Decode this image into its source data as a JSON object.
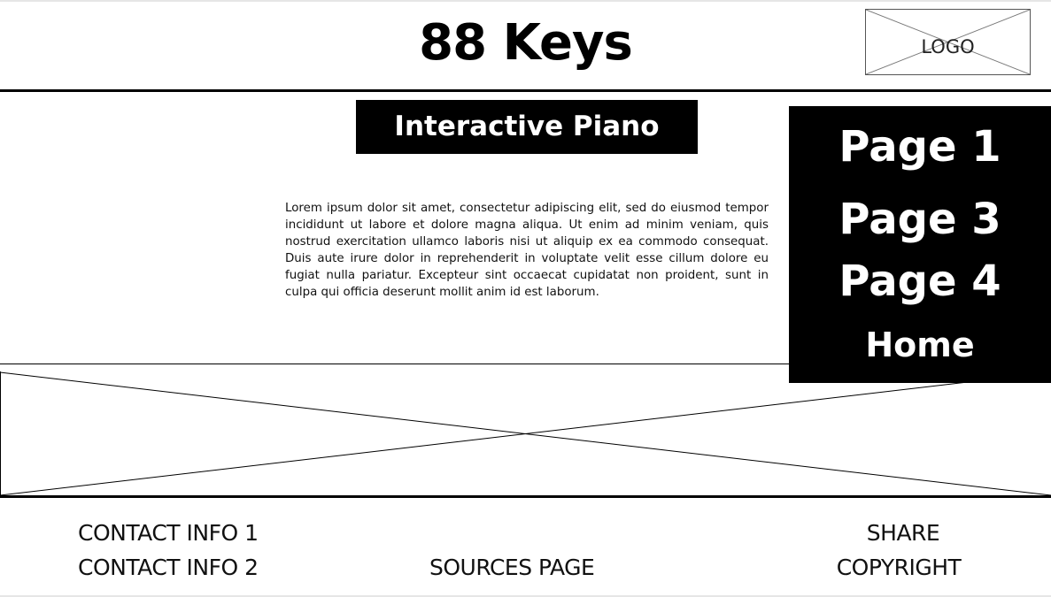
{
  "header": {
    "title": "88 Keys",
    "logo_label": "LOGO"
  },
  "main": {
    "section_title": "Interactive Piano",
    "body": "Lorem ipsum dolor sit amet, consectetur adipiscing elit, sed do eiusmod tempor incididunt ut labore et dolore magna aliqua. Ut enim ad minim veniam, quis nostrud exercitation ullamco laboris nisi ut aliquip ex ea commodo consequat. Duis aute irure dolor in reprehenderit in voluptate velit esse cillum dolore eu fugiat nulla pariatur. Excepteur sint occaecat cupidatat non proident, sunt in culpa qui officia deserunt mollit anim id est laborum."
  },
  "nav": {
    "items": [
      "Page 1",
      "Page 3",
      "Page 4",
      "Home"
    ]
  },
  "footer": {
    "contact_1": "CONTACT INFO 1",
    "contact_2": "CONTACT INFO 2",
    "sources": "SOURCES PAGE",
    "share": "SHARE",
    "copyright": "COPYRIGHT"
  },
  "colors": {
    "background": "#ffffff",
    "ink": "#000000",
    "nav_text": "#ffffff"
  }
}
